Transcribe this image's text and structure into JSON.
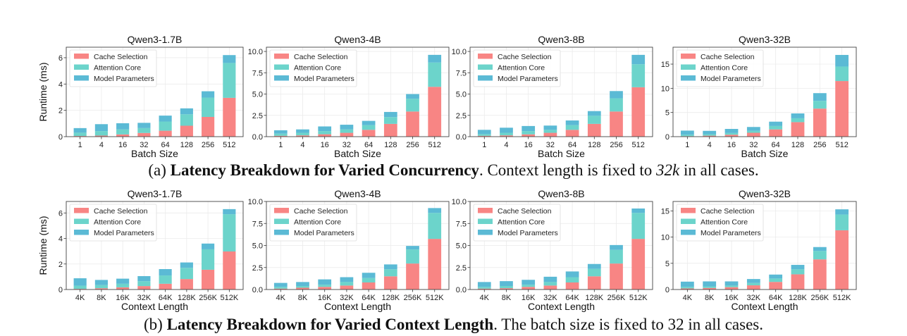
{
  "colors": {
    "cache": "#F88584",
    "attention": "#6CD4CB",
    "model": "#5BBAD5"
  },
  "legend": [
    "Cache Selection",
    "Attention Core",
    "Model Parameters"
  ],
  "captions": {
    "a": {
      "prefix": "(a) ",
      "bold": "Latency Breakdown for Varied Concurrency",
      "mid": ". Context length is fixed to ",
      "math": "32k",
      "suffix": " in all cases."
    },
    "b": {
      "prefix": "(b) ",
      "bold": "Latency Breakdown for Varied Context Length",
      "mid": ". The batch size is fixed to 32 in all cases.",
      "math": "",
      "suffix": ""
    }
  },
  "chart_data": [
    {
      "type": "bar",
      "stacked": true,
      "title": "Qwen3-1.7B",
      "xlabel": "Batch Size",
      "ylabel": "Runtime (ms)",
      "ylim": [
        0,
        6.8
      ],
      "yticks": [
        "0",
        "2",
        "4",
        "6"
      ],
      "ytick_values": [
        0,
        2,
        4,
        6
      ],
      "categories": [
        "1",
        "4",
        "16",
        "32",
        "64",
        "128",
        "256",
        "512"
      ],
      "series": [
        {
          "name": "Cache Selection",
          "values": [
            0.05,
            0.08,
            0.17,
            0.28,
            0.45,
            0.83,
            1.5,
            2.95
          ]
        },
        {
          "name": "Attention Core",
          "values": [
            0.25,
            0.34,
            0.38,
            0.37,
            0.7,
            0.87,
            1.47,
            2.65
          ]
        },
        {
          "name": "Model Parameters",
          "values": [
            0.35,
            0.53,
            0.47,
            0.4,
            0.45,
            0.45,
            0.48,
            0.6
          ]
        }
      ],
      "legend_position": "upper-left",
      "grid": true
    },
    {
      "type": "bar",
      "stacked": true,
      "title": "Qwen3-4B",
      "xlabel": "Batch Size",
      "ylabel": "",
      "ylim": [
        0,
        10.5
      ],
      "yticks": [
        "0.0",
        "2.5",
        "5.0",
        "7.5",
        "10.0"
      ],
      "ytick_values": [
        0,
        2.5,
        5,
        7.5,
        10
      ],
      "categories": [
        "1",
        "4",
        "16",
        "32",
        "64",
        "128",
        "256",
        "512"
      ],
      "series": [
        {
          "name": "Cache Selection",
          "values": [
            0.1,
            0.15,
            0.28,
            0.45,
            0.8,
            1.5,
            2.95,
            5.85
          ]
        },
        {
          "name": "Attention Core",
          "values": [
            0.25,
            0.3,
            0.37,
            0.4,
            0.55,
            0.8,
            1.5,
            2.85
          ]
        },
        {
          "name": "Model Parameters",
          "values": [
            0.4,
            0.4,
            0.55,
            0.55,
            0.5,
            0.6,
            0.55,
            0.9
          ]
        }
      ],
      "legend_position": "upper-left",
      "grid": true
    },
    {
      "type": "bar",
      "stacked": true,
      "title": "Qwen3-8B",
      "xlabel": "Batch Size",
      "ylabel": "",
      "ylim": [
        0,
        10.5
      ],
      "yticks": [
        "0.0",
        "2.5",
        "5.0",
        "7.5",
        "10.0"
      ],
      "ytick_values": [
        0,
        2.5,
        5,
        7.5,
        10
      ],
      "categories": [
        "1",
        "4",
        "16",
        "32",
        "64",
        "128",
        "256",
        "512"
      ],
      "series": [
        {
          "name": "Cache Selection",
          "values": [
            0.1,
            0.15,
            0.27,
            0.45,
            0.8,
            1.5,
            2.95,
            5.8
          ]
        },
        {
          "name": "Attention Core",
          "values": [
            0.2,
            0.3,
            0.38,
            0.35,
            0.55,
            0.95,
            1.55,
            2.7
          ]
        },
        {
          "name": "Model Parameters",
          "values": [
            0.5,
            0.6,
            0.6,
            0.5,
            0.55,
            0.55,
            0.85,
            1.1
          ]
        }
      ],
      "legend_position": "upper-left",
      "grid": true
    },
    {
      "type": "bar",
      "stacked": true,
      "title": "Qwen3-32B",
      "xlabel": "Batch Size",
      "ylabel": "",
      "ylim": [
        0,
        18.5
      ],
      "yticks": [
        "0",
        "5",
        "10",
        "15"
      ],
      "ytick_values": [
        0,
        5,
        10,
        15
      ],
      "categories": [
        "1",
        "4",
        "16",
        "32",
        "64",
        "128",
        "256",
        "512"
      ],
      "series": [
        {
          "name": "Cache Selection",
          "values": [
            0.1,
            0.2,
            0.4,
            0.8,
            1.5,
            3.0,
            5.8,
            11.5
          ]
        },
        {
          "name": "Attention Core",
          "values": [
            0.3,
            0.3,
            0.35,
            0.4,
            0.7,
            0.8,
            1.6,
            3.0
          ]
        },
        {
          "name": "Model Parameters",
          "values": [
            0.85,
            0.7,
            0.85,
            0.8,
            0.9,
            1.0,
            1.6,
            2.4
          ]
        }
      ],
      "legend_position": "upper-left",
      "grid": true
    },
    {
      "type": "bar",
      "stacked": true,
      "title": "Qwen3-1.7B",
      "xlabel": "Context Length",
      "ylabel": "Runtime (ms)",
      "ylim": [
        0,
        6.9
      ],
      "yticks": [
        "0",
        "2",
        "4",
        "6"
      ],
      "ytick_values": [
        0,
        2,
        4,
        6
      ],
      "categories": [
        "4K",
        "8K",
        "16K",
        "32K",
        "64K",
        "128K",
        "256K",
        "512K"
      ],
      "series": [
        {
          "name": "Cache Selection",
          "values": [
            0.05,
            0.1,
            0.17,
            0.27,
            0.45,
            0.82,
            1.55,
            2.98
          ]
        },
        {
          "name": "Attention Core",
          "values": [
            0.25,
            0.25,
            0.28,
            0.38,
            0.65,
            0.88,
            1.6,
            2.92
          ]
        },
        {
          "name": "Model Parameters",
          "values": [
            0.58,
            0.4,
            0.4,
            0.4,
            0.5,
            0.42,
            0.45,
            0.4
          ]
        }
      ],
      "legend_position": "upper-left",
      "grid": true
    },
    {
      "type": "bar",
      "stacked": true,
      "title": "Qwen3-4B",
      "xlabel": "Context Length",
      "ylabel": "",
      "ylim": [
        0,
        10.0
      ],
      "yticks": [
        "0.0",
        "2.5",
        "5.0",
        "7.5",
        "10.0"
      ],
      "ytick_values": [
        0,
        2.5,
        5,
        7.5,
        10
      ],
      "categories": [
        "4K",
        "8K",
        "16K",
        "32K",
        "64K",
        "128K",
        "256K",
        "512K"
      ],
      "series": [
        {
          "name": "Cache Selection",
          "values": [
            0.1,
            0.2,
            0.3,
            0.45,
            0.8,
            1.5,
            2.95,
            5.75
          ]
        },
        {
          "name": "Attention Core",
          "values": [
            0.2,
            0.2,
            0.25,
            0.4,
            0.5,
            0.8,
            1.6,
            2.95
          ]
        },
        {
          "name": "Model Parameters",
          "values": [
            0.45,
            0.45,
            0.6,
            0.55,
            0.6,
            0.55,
            0.4,
            0.55
          ]
        }
      ],
      "legend_position": "upper-left",
      "grid": true
    },
    {
      "type": "bar",
      "stacked": true,
      "title": "Qwen3-8B",
      "xlabel": "Context Length",
      "ylabel": "",
      "ylim": [
        0,
        10.0
      ],
      "yticks": [
        "0.0",
        "2.5",
        "5.0",
        "7.5",
        "10.0"
      ],
      "ytick_values": [
        0,
        2.5,
        5,
        7.5,
        10
      ],
      "categories": [
        "4K",
        "8K",
        "16K",
        "32K",
        "64K",
        "128K",
        "256K",
        "512K"
      ],
      "series": [
        {
          "name": "Cache Selection",
          "values": [
            0.1,
            0.15,
            0.3,
            0.45,
            0.8,
            1.5,
            2.95,
            5.75
          ]
        },
        {
          "name": "Attention Core",
          "values": [
            0.2,
            0.25,
            0.25,
            0.4,
            0.6,
            0.85,
            1.55,
            2.95
          ]
        },
        {
          "name": "Model Parameters",
          "values": [
            0.55,
            0.55,
            0.55,
            0.6,
            0.65,
            0.55,
            0.55,
            0.5
          ]
        }
      ],
      "legend_position": "upper-left",
      "grid": true
    },
    {
      "type": "bar",
      "stacked": true,
      "title": "Qwen3-32B",
      "xlabel": "Context Length",
      "ylabel": "",
      "ylim": [
        0,
        16.8
      ],
      "yticks": [
        "0",
        "5",
        "10",
        "15"
      ],
      "ytick_values": [
        0,
        5,
        10,
        15
      ],
      "categories": [
        "4K",
        "8K",
        "16K",
        "32K",
        "64K",
        "128K",
        "256K",
        "512K"
      ],
      "series": [
        {
          "name": "Cache Selection",
          "values": [
            0.2,
            0.3,
            0.45,
            0.8,
            1.45,
            2.9,
            5.75,
            11.3
          ]
        },
        {
          "name": "Attention Core",
          "values": [
            0.3,
            0.3,
            0.3,
            0.45,
            0.65,
            0.95,
            1.6,
            3.0
          ]
        },
        {
          "name": "Model Parameters",
          "values": [
            1.0,
            0.95,
            0.8,
            0.75,
            0.75,
            0.85,
            0.75,
            1.0
          ]
        }
      ],
      "legend_position": "upper-left",
      "grid": true
    }
  ]
}
